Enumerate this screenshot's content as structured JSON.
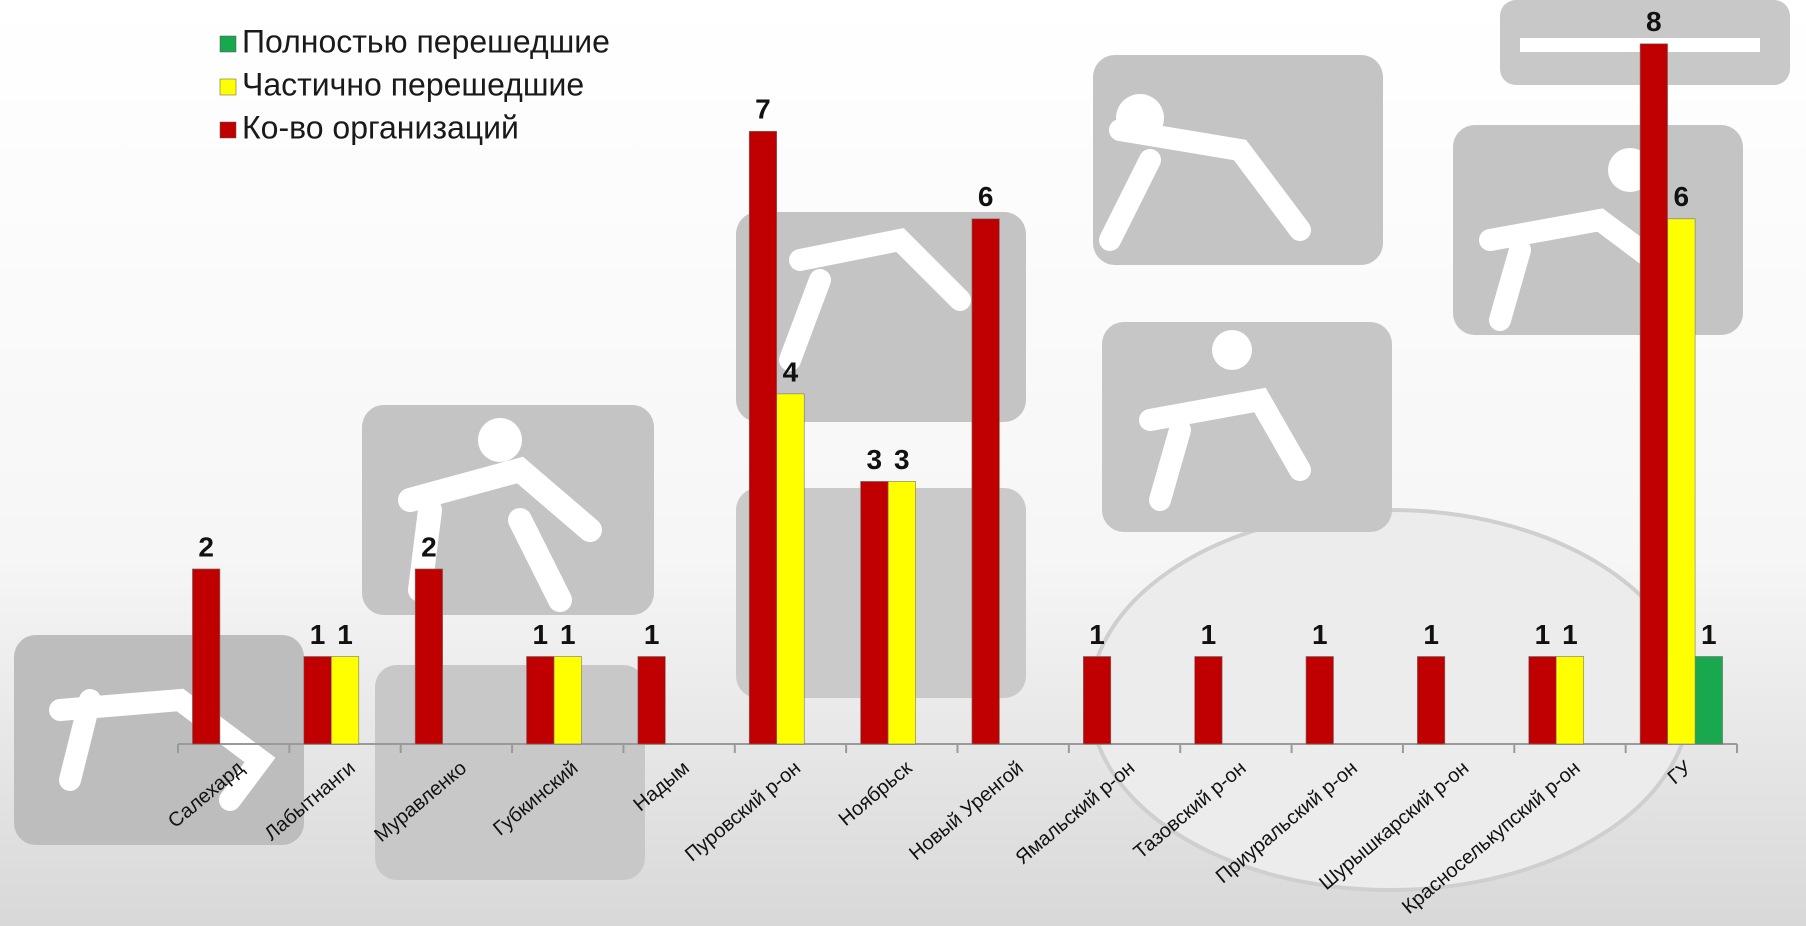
{
  "chart_data": {
    "type": "bar",
    "categories": [
      "Салехард",
      "Лабытнанги",
      "Муравленко",
      "Губкинский",
      "Надым",
      "Пуровский р-он",
      "Ноябрьск",
      "Новый Уренгой",
      "Ямальский р-он",
      "Тазовский р-он",
      "Приуральский р-он",
      "Шурышкарский р-он",
      "Красноселькупский р-он",
      "ГУ"
    ],
    "series": [
      {
        "name": "Полностью перешедшие",
        "color": "#1aa84f",
        "values": [
          null,
          null,
          null,
          null,
          null,
          null,
          null,
          null,
          null,
          null,
          null,
          null,
          null,
          1
        ]
      },
      {
        "name": "Частично перешедшие",
        "color": "#ffff00",
        "values": [
          null,
          1,
          null,
          1,
          null,
          4,
          3,
          null,
          null,
          null,
          null,
          null,
          1,
          6
        ]
      },
      {
        "name": "Ко-во организаций",
        "color": "#c00000",
        "values": [
          2,
          1,
          2,
          1,
          1,
          7,
          3,
          6,
          1,
          1,
          1,
          1,
          1,
          8
        ]
      }
    ],
    "ylim": [
      0,
      8.5
    ]
  }
}
